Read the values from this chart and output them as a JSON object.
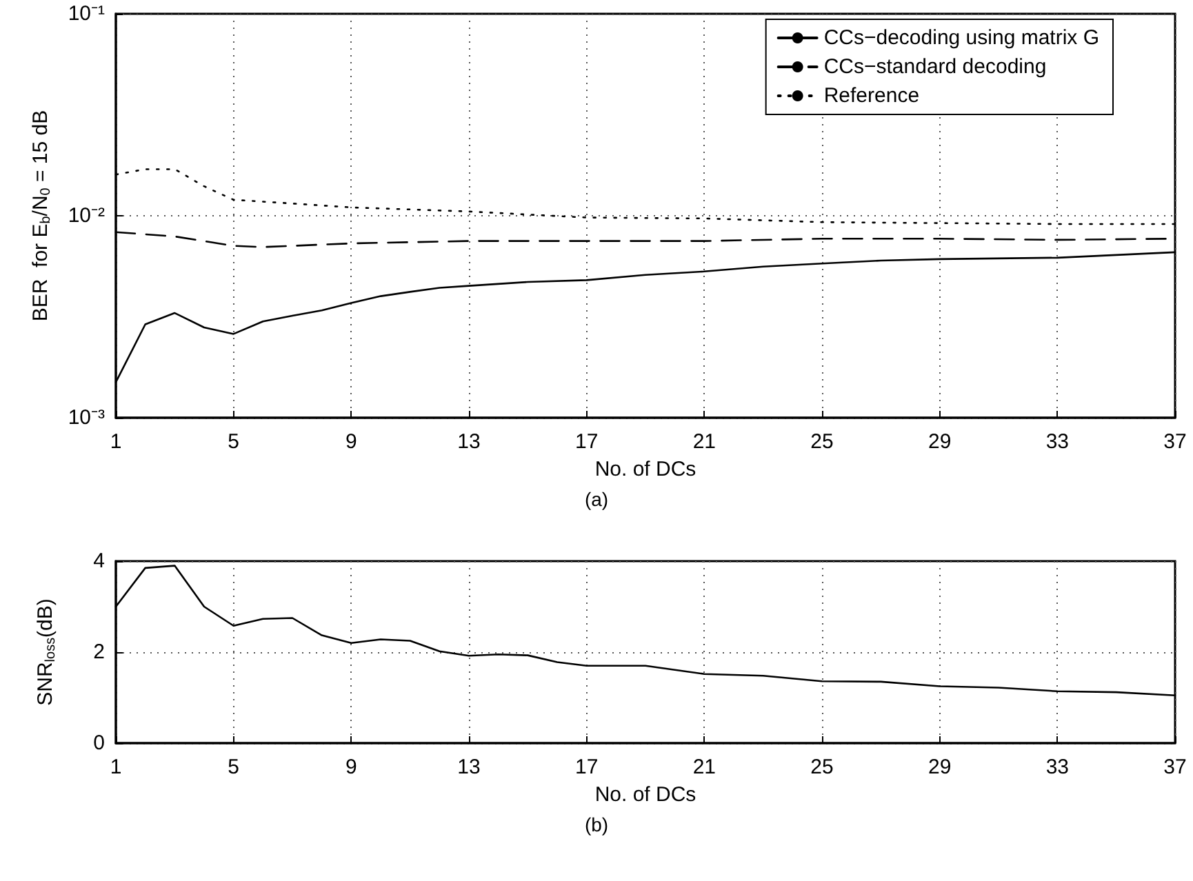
{
  "chart_data": [
    {
      "type": "line",
      "xlabel": "No. of DCs",
      "ylabel": "BER  for E$_{b}$/N$_{0}$ = 15 dB",
      "annotations": [
        "(a)"
      ],
      "log": "y",
      "grid": true,
      "legend": "top right",
      "marker": "none",
      "xlim": [
        1,
        37
      ],
      "xticks": [
        1,
        5,
        9,
        13,
        17,
        21,
        25,
        29,
        33,
        37
      ],
      "ylim": [
        0.001,
        0.1
      ],
      "yticks": [
        {
          "value": 0.001,
          "label": "10⁻³"
        },
        {
          "value": 0.01,
          "label": "10⁻²"
        },
        {
          "value": 0.1,
          "label": "10⁻¹"
        }
      ],
      "series": [
        {
          "name": "CCs−decoding using matrix G",
          "color": "#000000",
          "line_style": "solid",
          "x": [
            1,
            2,
            3,
            4,
            5,
            6,
            7,
            8,
            9,
            10,
            11,
            12,
            13,
            15,
            17,
            19,
            21,
            23,
            25,
            27,
            29,
            33,
            37
          ],
          "values": [
            0.0015,
            0.0029,
            0.0033,
            0.0028,
            0.0026,
            0.003,
            0.0032,
            0.0034,
            0.0037,
            0.004,
            0.0042,
            0.0044,
            0.0045,
            0.0047,
            0.0048,
            0.0051,
            0.0053,
            0.0056,
            0.0058,
            0.006,
            0.0061,
            0.0062,
            0.0066
          ]
        },
        {
          "name": "CCs−standard decoding",
          "color": "#000000",
          "line_style": "dashed",
          "x": [
            1,
            3,
            5,
            6,
            9,
            13,
            17,
            21,
            25,
            29,
            33,
            37
          ],
          "values": [
            0.0083,
            0.0079,
            0.0071,
            0.007,
            0.0073,
            0.0075,
            0.0075,
            0.0075,
            0.0077,
            0.0077,
            0.0076,
            0.0077
          ]
        },
        {
          "name": "Reference",
          "color": "#000000",
          "line_style": "dotted",
          "x": [
            1,
            2,
            3,
            4,
            5,
            7,
            9,
            13,
            17,
            21,
            25,
            29,
            33,
            37
          ],
          "values": [
            0.016,
            0.017,
            0.017,
            0.014,
            0.012,
            0.0115,
            0.011,
            0.0105,
            0.0098,
            0.0097,
            0.0093,
            0.0092,
            0.0091,
            0.0091
          ]
        }
      ]
    },
    {
      "type": "line",
      "xlabel": "No. of DCs",
      "ylabel": "SNR$_{loss}$(dB)",
      "annotations": [
        "(b)"
      ],
      "grid": true,
      "legend": false,
      "marker": "none",
      "xlim": [
        1,
        37
      ],
      "xticks": [
        1,
        5,
        9,
        13,
        17,
        21,
        25,
        29,
        33,
        37
      ],
      "ylim": [
        0,
        4
      ],
      "yticks": [
        0,
        2,
        4
      ],
      "series": [
        {
          "color": "#000000",
          "line_style": "solid",
          "x": [
            1,
            2,
            3,
            4,
            5,
            6,
            7,
            8,
            9,
            10,
            11,
            12,
            13,
            14,
            15,
            16,
            17,
            19,
            21,
            23,
            25,
            27,
            29,
            31,
            33,
            35,
            37
          ],
          "values": [
            3.0,
            3.85,
            3.9,
            3.0,
            2.58,
            2.73,
            2.75,
            2.37,
            2.2,
            2.28,
            2.25,
            2.02,
            1.92,
            1.95,
            1.93,
            1.78,
            1.7,
            1.7,
            1.52,
            1.48,
            1.36,
            1.35,
            1.25,
            1.22,
            1.14,
            1.12,
            1.05
          ]
        }
      ]
    }
  ]
}
